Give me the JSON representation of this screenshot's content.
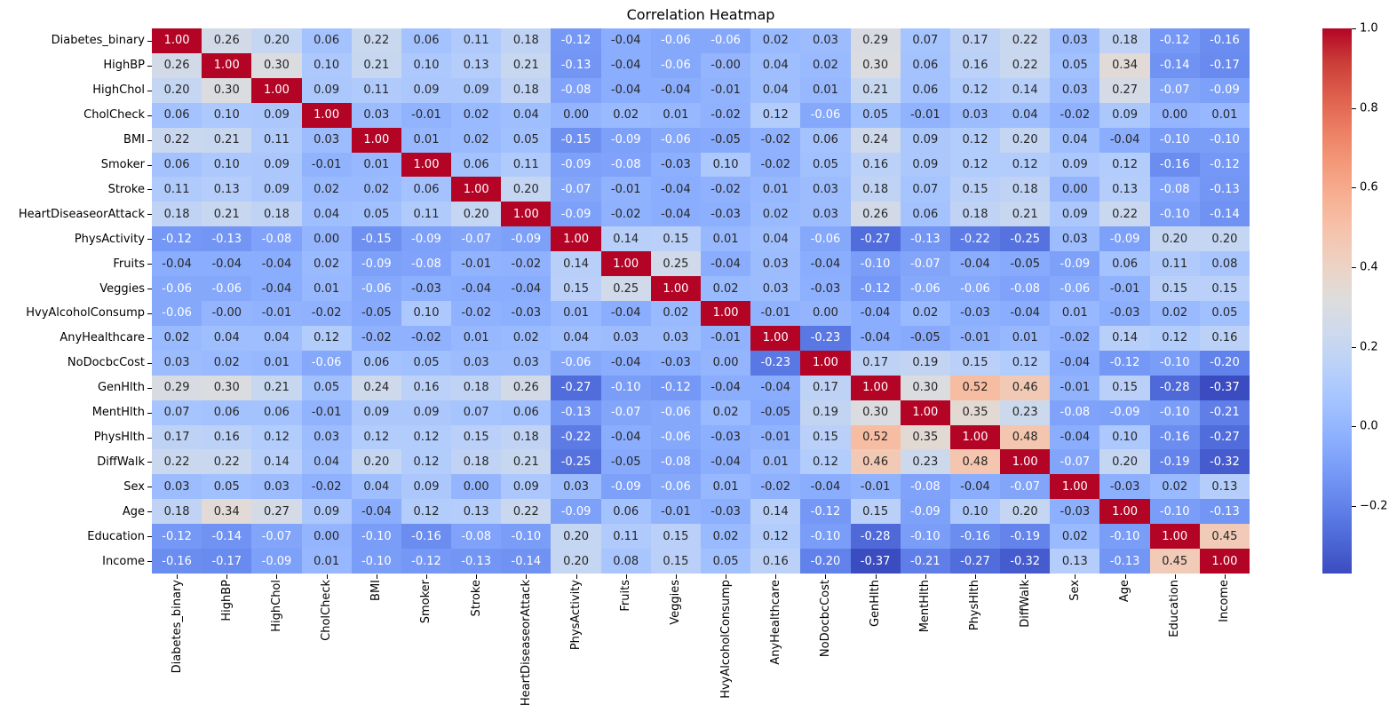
{
  "chart_data": {
    "type": "heatmap",
    "title": "Correlation Heatmap",
    "colormap": "coolwarm",
    "vmin": -0.37,
    "vmax": 1.0,
    "background": "#ffffff",
    "min_color": "#3b4cc0",
    "mid_color": "#dddddd",
    "max_color": "#b40426",
    "annotation_dark_text": "#262626",
    "annotation_light_text": "#ffffff",
    "legend_position": "right-colorbar",
    "colorbar_ticks": [
      {
        "value": 1.0,
        "label": "1.0"
      },
      {
        "value": 0.8,
        "label": "0.8"
      },
      {
        "value": 0.6,
        "label": "0.6"
      },
      {
        "value": 0.4,
        "label": "0.4"
      },
      {
        "value": 0.2,
        "label": "0.2"
      },
      {
        "value": 0.0,
        "label": "0.0"
      },
      {
        "value": -0.2,
        "label": "−0.2"
      }
    ],
    "labels": [
      "Diabetes_binary",
      "HighBP",
      "HighChol",
      "CholCheck",
      "BMI",
      "Smoker",
      "Stroke",
      "HeartDiseaseorAttack",
      "PhysActivity",
      "Fruits",
      "Veggies",
      "HvyAlcoholConsump",
      "AnyHealthcare",
      "NoDocbcCost",
      "GenHlth",
      "MentHlth",
      "PhysHlth",
      "DiffWalk",
      "Sex",
      "Age",
      "Education",
      "Income"
    ],
    "matrix": [
      [
        "1.00",
        "0.26",
        "0.20",
        "0.06",
        "0.22",
        "0.06",
        "0.11",
        "0.18",
        "-0.12",
        "-0.04",
        "-0.06",
        "-0.06",
        "0.02",
        "0.03",
        "0.29",
        "0.07",
        "0.17",
        "0.22",
        "0.03",
        "0.18",
        "-0.12",
        "-0.16"
      ],
      [
        "0.26",
        "1.00",
        "0.30",
        "0.10",
        "0.21",
        "0.10",
        "0.13",
        "0.21",
        "-0.13",
        "-0.04",
        "-0.06",
        "-0.00",
        "0.04",
        "0.02",
        "0.30",
        "0.06",
        "0.16",
        "0.22",
        "0.05",
        "0.34",
        "-0.14",
        "-0.17"
      ],
      [
        "0.20",
        "0.30",
        "1.00",
        "0.09",
        "0.11",
        "0.09",
        "0.09",
        "0.18",
        "-0.08",
        "-0.04",
        "-0.04",
        "-0.01",
        "0.04",
        "0.01",
        "0.21",
        "0.06",
        "0.12",
        "0.14",
        "0.03",
        "0.27",
        "-0.07",
        "-0.09"
      ],
      [
        "0.06",
        "0.10",
        "0.09",
        "1.00",
        "0.03",
        "-0.01",
        "0.02",
        "0.04",
        "0.00",
        "0.02",
        "0.01",
        "-0.02",
        "0.12",
        "-0.06",
        "0.05",
        "-0.01",
        "0.03",
        "0.04",
        "-0.02",
        "0.09",
        "0.00",
        "0.01"
      ],
      [
        "0.22",
        "0.21",
        "0.11",
        "0.03",
        "1.00",
        "0.01",
        "0.02",
        "0.05",
        "-0.15",
        "-0.09",
        "-0.06",
        "-0.05",
        "-0.02",
        "0.06",
        "0.24",
        "0.09",
        "0.12",
        "0.20",
        "0.04",
        "-0.04",
        "-0.10",
        "-0.10"
      ],
      [
        "0.06",
        "0.10",
        "0.09",
        "-0.01",
        "0.01",
        "1.00",
        "0.06",
        "0.11",
        "-0.09",
        "-0.08",
        "-0.03",
        "0.10",
        "-0.02",
        "0.05",
        "0.16",
        "0.09",
        "0.12",
        "0.12",
        "0.09",
        "0.12",
        "-0.16",
        "-0.12"
      ],
      [
        "0.11",
        "0.13",
        "0.09",
        "0.02",
        "0.02",
        "0.06",
        "1.00",
        "0.20",
        "-0.07",
        "-0.01",
        "-0.04",
        "-0.02",
        "0.01",
        "0.03",
        "0.18",
        "0.07",
        "0.15",
        "0.18",
        "0.00",
        "0.13",
        "-0.08",
        "-0.13"
      ],
      [
        "0.18",
        "0.21",
        "0.18",
        "0.04",
        "0.05",
        "0.11",
        "0.20",
        "1.00",
        "-0.09",
        "-0.02",
        "-0.04",
        "-0.03",
        "0.02",
        "0.03",
        "0.26",
        "0.06",
        "0.18",
        "0.21",
        "0.09",
        "0.22",
        "-0.10",
        "-0.14"
      ],
      [
        "-0.12",
        "-0.13",
        "-0.08",
        "0.00",
        "-0.15",
        "-0.09",
        "-0.07",
        "-0.09",
        "1.00",
        "0.14",
        "0.15",
        "0.01",
        "0.04",
        "-0.06",
        "-0.27",
        "-0.13",
        "-0.22",
        "-0.25",
        "0.03",
        "-0.09",
        "0.20",
        "0.20"
      ],
      [
        "-0.04",
        "-0.04",
        "-0.04",
        "0.02",
        "-0.09",
        "-0.08",
        "-0.01",
        "-0.02",
        "0.14",
        "1.00",
        "0.25",
        "-0.04",
        "0.03",
        "-0.04",
        "-0.10",
        "-0.07",
        "-0.04",
        "-0.05",
        "-0.09",
        "0.06",
        "0.11",
        "0.08"
      ],
      [
        "-0.06",
        "-0.06",
        "-0.04",
        "0.01",
        "-0.06",
        "-0.03",
        "-0.04",
        "-0.04",
        "0.15",
        "0.25",
        "1.00",
        "0.02",
        "0.03",
        "-0.03",
        "-0.12",
        "-0.06",
        "-0.06",
        "-0.08",
        "-0.06",
        "-0.01",
        "0.15",
        "0.15"
      ],
      [
        "-0.06",
        "-0.00",
        "-0.01",
        "-0.02",
        "-0.05",
        "0.10",
        "-0.02",
        "-0.03",
        "0.01",
        "-0.04",
        "0.02",
        "1.00",
        "-0.01",
        "0.00",
        "-0.04",
        "0.02",
        "-0.03",
        "-0.04",
        "0.01",
        "-0.03",
        "0.02",
        "0.05"
      ],
      [
        "0.02",
        "0.04",
        "0.04",
        "0.12",
        "-0.02",
        "-0.02",
        "0.01",
        "0.02",
        "0.04",
        "0.03",
        "0.03",
        "-0.01",
        "1.00",
        "-0.23",
        "-0.04",
        "-0.05",
        "-0.01",
        "0.01",
        "-0.02",
        "0.14",
        "0.12",
        "0.16"
      ],
      [
        "0.03",
        "0.02",
        "0.01",
        "-0.06",
        "0.06",
        "0.05",
        "0.03",
        "0.03",
        "-0.06",
        "-0.04",
        "-0.03",
        "0.00",
        "-0.23",
        "1.00",
        "0.17",
        "0.19",
        "0.15",
        "0.12",
        "-0.04",
        "-0.12",
        "-0.10",
        "-0.20"
      ],
      [
        "0.29",
        "0.30",
        "0.21",
        "0.05",
        "0.24",
        "0.16",
        "0.18",
        "0.26",
        "-0.27",
        "-0.10",
        "-0.12",
        "-0.04",
        "-0.04",
        "0.17",
        "1.00",
        "0.30",
        "0.52",
        "0.46",
        "-0.01",
        "0.15",
        "-0.28",
        "-0.37"
      ],
      [
        "0.07",
        "0.06",
        "0.06",
        "-0.01",
        "0.09",
        "0.09",
        "0.07",
        "0.06",
        "-0.13",
        "-0.07",
        "-0.06",
        "0.02",
        "-0.05",
        "0.19",
        "0.30",
        "1.00",
        "0.35",
        "0.23",
        "-0.08",
        "-0.09",
        "-0.10",
        "-0.21"
      ],
      [
        "0.17",
        "0.16",
        "0.12",
        "0.03",
        "0.12",
        "0.12",
        "0.15",
        "0.18",
        "-0.22",
        "-0.04",
        "-0.06",
        "-0.03",
        "-0.01",
        "0.15",
        "0.52",
        "0.35",
        "1.00",
        "0.48",
        "-0.04",
        "0.10",
        "-0.16",
        "-0.27"
      ],
      [
        "0.22",
        "0.22",
        "0.14",
        "0.04",
        "0.20",
        "0.12",
        "0.18",
        "0.21",
        "-0.25",
        "-0.05",
        "-0.08",
        "-0.04",
        "0.01",
        "0.12",
        "0.46",
        "0.23",
        "0.48",
        "1.00",
        "-0.07",
        "0.20",
        "-0.19",
        "-0.32"
      ],
      [
        "0.03",
        "0.05",
        "0.03",
        "-0.02",
        "0.04",
        "0.09",
        "0.00",
        "0.09",
        "0.03",
        "-0.09",
        "-0.06",
        "0.01",
        "-0.02",
        "-0.04",
        "-0.01",
        "-0.08",
        "-0.04",
        "-0.07",
        "1.00",
        "-0.03",
        "0.02",
        "0.13"
      ],
      [
        "0.18",
        "0.34",
        "0.27",
        "0.09",
        "-0.04",
        "0.12",
        "0.13",
        "0.22",
        "-0.09",
        "0.06",
        "-0.01",
        "-0.03",
        "0.14",
        "-0.12",
        "0.15",
        "-0.09",
        "0.10",
        "0.20",
        "-0.03",
        "1.00",
        "-0.10",
        "-0.13"
      ],
      [
        "-0.12",
        "-0.14",
        "-0.07",
        "0.00",
        "-0.10",
        "-0.16",
        "-0.08",
        "-0.10",
        "0.20",
        "0.11",
        "0.15",
        "0.02",
        "0.12",
        "-0.10",
        "-0.28",
        "-0.10",
        "-0.16",
        "-0.19",
        "0.02",
        "-0.10",
        "1.00",
        "0.45"
      ],
      [
        "-0.16",
        "-0.17",
        "-0.09",
        "0.01",
        "-0.10",
        "-0.12",
        "-0.13",
        "-0.14",
        "0.20",
        "0.08",
        "0.15",
        "0.05",
        "0.16",
        "-0.20",
        "-0.37",
        "-0.21",
        "-0.27",
        "-0.32",
        "0.13",
        "-0.13",
        "0.45",
        "1.00"
      ]
    ]
  }
}
